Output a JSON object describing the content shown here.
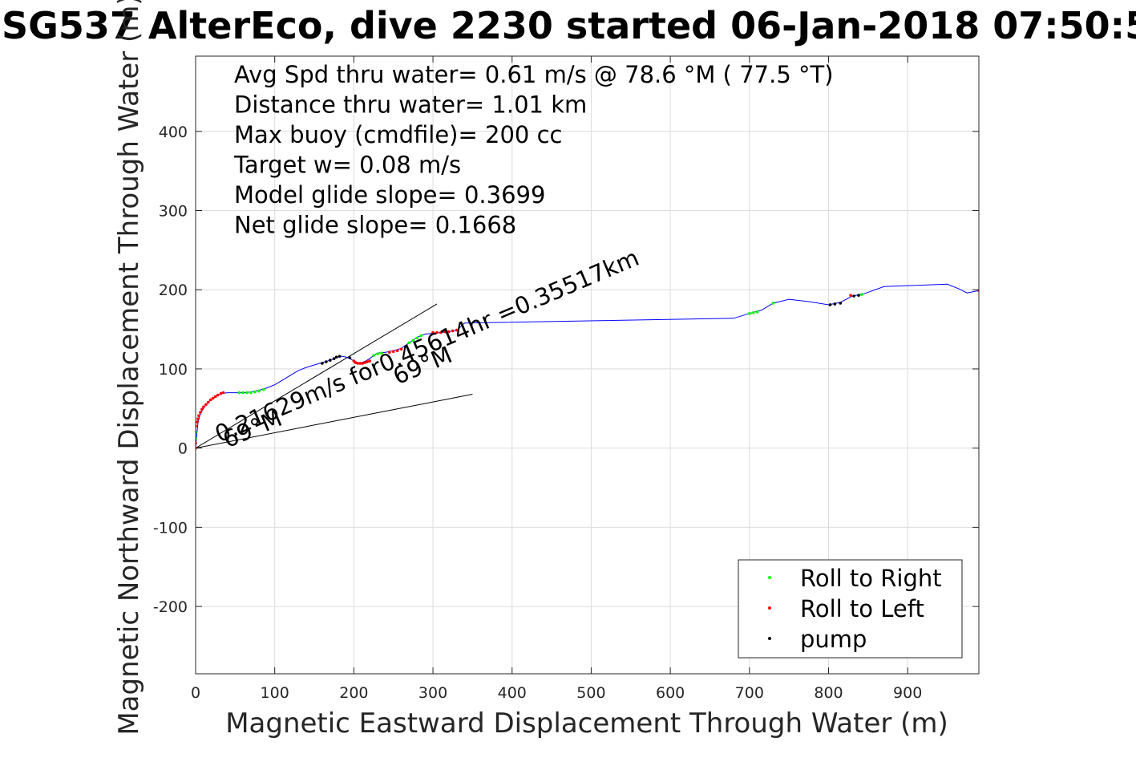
{
  "chart_data": {
    "type": "scatter",
    "title": "SG537 AlterEco, dive 2230 started 06-Jan-2018 07:50:5",
    "xlabel": "Magnetic Eastward Displacement Through Water (m)",
    "ylabel": "Magnetic Northward Displacement Through Water (m)",
    "xlim": [
      0,
      990
    ],
    "ylim": [
      -285,
      495
    ],
    "xticks": [
      0,
      100,
      200,
      300,
      400,
      500,
      600,
      700,
      800,
      900
    ],
    "yticks": [
      -200,
      -100,
      0,
      100,
      200,
      300,
      400
    ],
    "grid": true,
    "legend_position": "bottom-right",
    "info_lines": [
      "Avg Spd thru water=  0.61 m/s @  78.6 °M ( 77.5 °T)",
      "Distance thru water=  1.01 km",
      "Max buoy (cmdfile)= 200 cc",
      "Target w= 0.08 m/s",
      "Model glide slope= 0.3699",
      "Net glide slope= 0.1668"
    ],
    "annotations": [
      {
        "text": "0.21629m/s for0.45614hr =0.35517km",
        "at": [
          30,
          7
        ],
        "angle": 23
      },
      {
        "text": "69°M",
        "at": [
          40,
          0
        ],
        "angle": 23
      },
      {
        "text": "69°M",
        "at": [
          255,
          80
        ],
        "angle": 23
      }
    ],
    "reference_lines": [
      {
        "name": "",
        "x": [
          0,
          305
        ],
        "y": [
          0,
          182
        ]
      },
      {
        "name": "",
        "x": [
          0,
          350
        ],
        "y": [
          0,
          68
        ]
      }
    ],
    "track": {
      "name": "",
      "color": "#0000ff",
      "x": [
        0,
        1,
        2,
        3,
        5,
        8,
        12,
        17,
        22,
        27,
        33,
        40,
        50,
        60,
        70,
        80,
        90,
        100,
        110,
        120,
        130,
        140,
        150,
        160,
        170,
        175,
        180,
        185,
        190,
        195,
        200,
        205,
        210,
        215,
        220,
        225,
        230,
        240,
        250,
        260,
        270,
        280,
        290,
        300,
        310,
        320,
        330,
        340,
        680,
        700,
        715,
        730,
        750,
        775,
        800,
        815,
        830,
        845,
        870,
        950,
        965,
        975,
        990
      ],
      "y": [
        0,
        12,
        23,
        32,
        40,
        47,
        53,
        59,
        63,
        66,
        69,
        70,
        70,
        70,
        71,
        73,
        76,
        80,
        86,
        92,
        98,
        102,
        105,
        108,
        111,
        113,
        115,
        116,
        115,
        113,
        110,
        108,
        108,
        110,
        113,
        117,
        120,
        121,
        123,
        126,
        133,
        140,
        144,
        145,
        146,
        147,
        149,
        158,
        164,
        170,
        174,
        183,
        188,
        185,
        181,
        184,
        192,
        195,
        204,
        207,
        201,
        196,
        199
      ]
    },
    "series": [
      {
        "name": "Roll to Right",
        "color": "#00ff00",
        "x": [
          0,
          0,
          55,
          60,
          65,
          70,
          75,
          80,
          86,
          225,
          230,
          235,
          270,
          275,
          280,
          285,
          700,
          705,
          710,
          730,
          838,
          842
        ],
        "y": [
          12,
          20,
          70,
          70,
          70,
          70,
          71,
          72,
          74,
          117,
          119,
          120,
          133,
          136,
          139,
          142,
          170,
          171,
          172,
          183,
          193,
          194
        ]
      },
      {
        "name": "Roll to Left",
        "color": "#ff0000",
        "x": [
          0,
          0,
          0,
          2,
          3,
          4,
          6,
          8,
          10,
          13,
          16,
          19,
          22,
          25,
          28,
          32,
          35,
          200,
          202,
          205,
          208,
          211,
          214,
          217,
          220,
          245,
          250,
          255,
          260,
          300,
          305,
          310,
          315,
          320,
          325,
          330,
          828,
          990
        ],
        "y": [
          0,
          6,
          28,
          33,
          37,
          41,
          45,
          49,
          52,
          55,
          58,
          61,
          63,
          65,
          67,
          69,
          70,
          110,
          108,
          107,
          107,
          107,
          108,
          109,
          110,
          121,
          122,
          123,
          125,
          146,
          146,
          146,
          147,
          147,
          148,
          149,
          193,
          199
        ]
      },
      {
        "name": "pump",
        "color": "#000000",
        "x": [
          160,
          165,
          170,
          175,
          178,
          182,
          195,
          802,
          808,
          815,
          832,
          838
        ],
        "y": [
          107,
          109,
          111,
          113,
          115,
          116,
          114,
          181,
          182,
          183,
          192,
          193
        ]
      }
    ]
  }
}
